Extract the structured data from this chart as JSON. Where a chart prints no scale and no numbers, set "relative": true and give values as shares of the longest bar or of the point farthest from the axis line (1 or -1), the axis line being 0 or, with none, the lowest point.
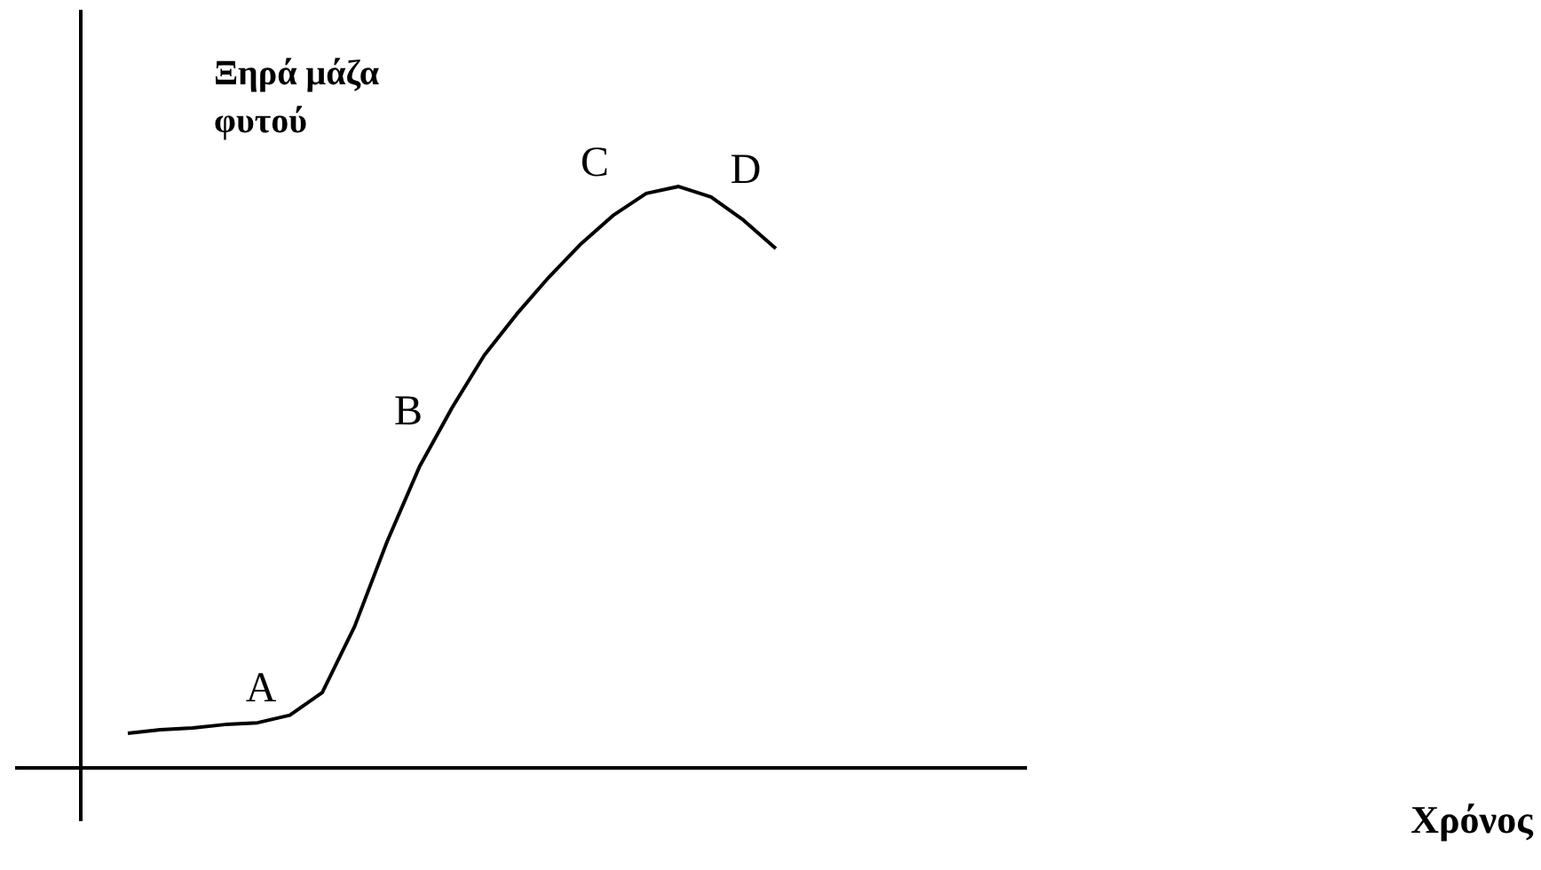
{
  "chart_data": {
    "type": "line",
    "relative": true,
    "ylabel": "Ξηρά μάζα φυτού",
    "categories": [
      null,
      null,
      null,
      null,
      null,
      null,
      null,
      null,
      null,
      null,
      null,
      null,
      null,
      null,
      null,
      null,
      null,
      null,
      null,
      null,
      null
    ],
    "series": [
      {
        "color": "#000000",
        "values": [
          0.058,
          0.064,
          0.067,
          0.073,
          0.076,
          0.089,
          0.128,
          0.242,
          0.388,
          0.517,
          0.618,
          0.709,
          0.78,
          0.844,
          0.902,
          0.951,
          0.988,
          1,
          0.982,
          0.942,
          0.893
        ]
      }
    ],
    "annotations": [
      "A",
      "B",
      "C",
      "D",
      "Χρόνος"
    ],
    "grid": false,
    "marker": "none",
    "line_style": "solid"
  }
}
